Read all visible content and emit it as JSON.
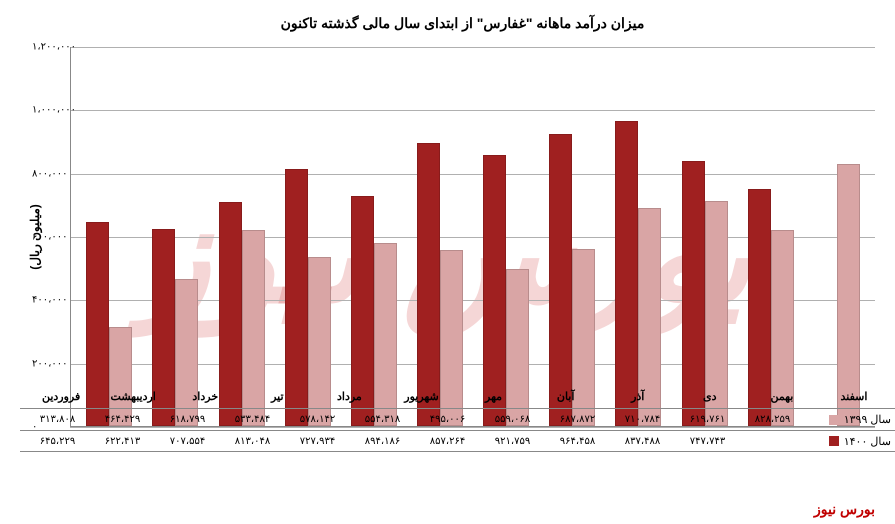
{
  "chart": {
    "title": "میزان درآمد ماهانه \"غفارس\" از ابتدای سال مالی گذشته تاکنون",
    "y_axis_label": "(میلیون ریال)",
    "type": "bar",
    "background_color": "#ffffff",
    "grid_color": "#b0b0b0",
    "y_axis": {
      "min": 0,
      "max": 1200000,
      "step": 200000,
      "ticks": [
        "۰",
        "۲۰۰،۰۰۰",
        "۴۰۰،۰۰۰",
        "۶۰۰،۰۰۰",
        "۸۰۰،۰۰۰",
        "۱،۰۰۰،۰۰۰",
        "۱،۲۰۰،۰۰۰"
      ]
    },
    "categories": [
      "فروردین",
      "اردیبهشت",
      "خرداد",
      "تیر",
      "مرداد",
      "شهریور",
      "مهر",
      "آبان",
      "آذر",
      "دی",
      "بهمن",
      "اسفند"
    ],
    "series": [
      {
        "name": "سال ۱۳۹۹",
        "color": "#d9a5a5",
        "values_raw": [
          313808,
          464429,
          618799,
          533484,
          578142,
          554318,
          495006,
          559068,
          687872,
          710784,
          619761,
          828259
        ],
        "values_disp": [
          "۳۱۳،۸۰۸",
          "۴۶۴،۴۲۹",
          "۶۱۸،۷۹۹",
          "۵۳۳،۴۸۴",
          "۵۷۸،۱۴۲",
          "۵۵۴،۳۱۸",
          "۴۹۵،۰۰۶",
          "۵۵۹،۰۶۸",
          "۶۸۷،۸۷۲",
          "۷۱۰،۷۸۴",
          "۶۱۹،۷۶۱",
          "۸۲۸،۲۵۹"
        ]
      },
      {
        "name": "سال ۱۴۰۰",
        "color": "#a02020",
        "values_raw": [
          645229,
          622413,
          707554,
          813048,
          727934,
          894186,
          857264,
          921759,
          964458,
          837488,
          747743,
          null
        ],
        "values_disp": [
          "۶۴۵،۲۲۹",
          "۶۲۲،۴۱۳",
          "۷۰۷،۵۵۴",
          "۸۱۳،۰۴۸",
          "۷۲۷،۹۳۴",
          "۸۹۴،۱۸۶",
          "۸۵۷،۲۶۴",
          "۹۲۱،۷۵۹",
          "۹۶۴،۴۵۸",
          "۸۳۷،۴۸۸",
          "۷۴۷،۷۴۳",
          ""
        ]
      }
    ]
  },
  "watermark": "بورس نیوز",
  "bg_watermark": "بورس نیوز"
}
